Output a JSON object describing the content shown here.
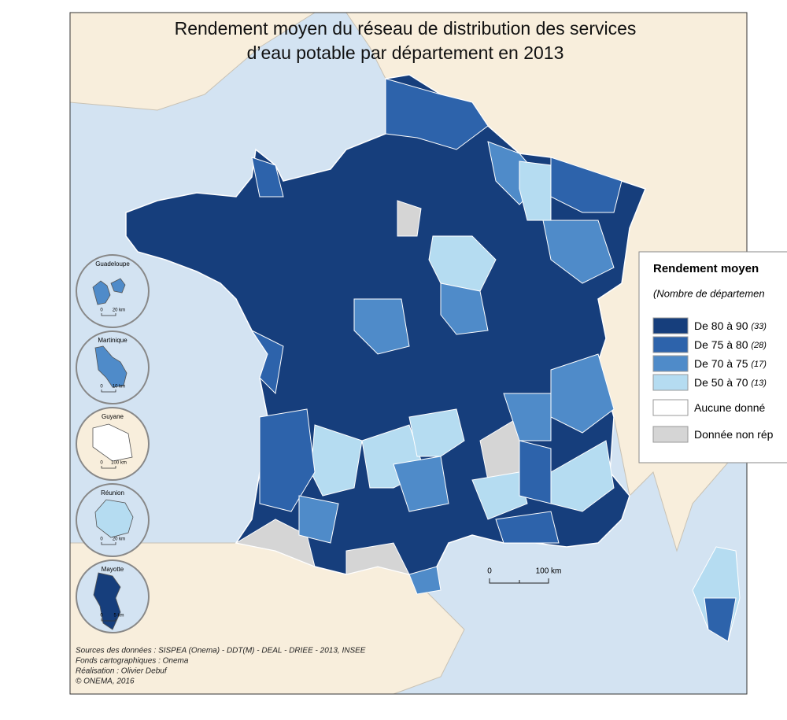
{
  "title_lines": [
    "Rendement moyen du réseau de distribution des services",
    "d’eau potable par département en 2013"
  ],
  "legend": {
    "title": "Rendement moyen",
    "subtitle": "(Nombre de départemen",
    "items": [
      {
        "label": "De 80 à 90",
        "count": "(33)",
        "color": "#163e7c"
      },
      {
        "label": "De 75 à 80",
        "count": "(28)",
        "color": "#2d63ab"
      },
      {
        "label": "De 70 à 75",
        "count": "(17)",
        "color": "#4f8bc9"
      },
      {
        "label": "De 50 à 70",
        "count": "(13)",
        "color": "#b5dcf1"
      },
      {
        "label": "Aucune donné",
        "color": "#ffffff"
      },
      {
        "label": "Donnée non rép",
        "color": "#d5d5d5"
      }
    ]
  },
  "insets": [
    {
      "name": "Guadeloupe",
      "scale": [
        "0",
        "20 km"
      ]
    },
    {
      "name": "Martinique",
      "scale": [
        "0",
        "10 km"
      ]
    },
    {
      "name": "Guyane",
      "scale": [
        "0",
        "100 km"
      ]
    },
    {
      "name": "Réunion",
      "scale": [
        "0",
        "20 km"
      ]
    },
    {
      "name": "Mayotte",
      "scale": [
        "0",
        "5 km"
      ]
    }
  ],
  "scale_bar": [
    "0",
    "100 km"
  ],
  "sources": [
    "Sources des données : SISPEA (Onema) - DDT(M) - DEAL - DRIEE - 2013, INSEE",
    "Fonds cartographiques : Onema",
    "Réalisation : Olivier Debuf",
    "© ONEMA, 2016"
  ]
}
